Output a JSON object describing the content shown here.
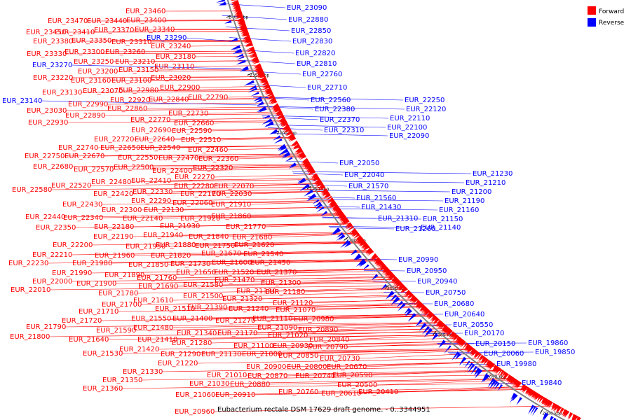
{
  "caption": "Eubacterium rectale DSM 17629 draft genome. - 0..3344951",
  "legend": {
    "forward_label": "Forward",
    "reverse_label": "Reverse",
    "forward_color": "#ff0000",
    "reverse_color": "#0000ff"
  },
  "chart_data": {
    "type": "circular-genome-map",
    "ticks": [
      "2400 kbp",
      "2350 kbp",
      "2300 kbp",
      "2250 kbp",
      "2200 kbp",
      "2150 kbp",
      "2100 kbp",
      "2050 kbp",
      "2000 kbp"
    ],
    "forward_labels": [
      [
        "EUR_23460",
        179,
        19
      ],
      [
        "EUR_23470",
        68,
        33
      ],
      [
        "EUR_23440",
        124,
        33
      ],
      [
        "EUR_23400",
        180,
        32
      ],
      [
        "EUR_23450",
        37,
        49
      ],
      [
        "EUR_23410",
        78,
        49
      ],
      [
        "EUR_23370",
        134,
        46
      ],
      [
        "EUR_23340",
        192,
        45
      ],
      [
        "EUR_23380",
        47,
        62
      ],
      [
        "EUR_23350",
        102,
        61
      ],
      [
        "EUR_23310",
        159,
        63
      ],
      [
        "EUR_23240",
        215,
        69
      ],
      [
        "EUR_23330",
        38,
        80
      ],
      [
        "EUR_23300",
        92,
        77
      ],
      [
        "EUR_23260",
        150,
        77
      ],
      [
        "EUR_23180",
        222,
        84
      ],
      [
        "EUR_23250",
        105,
        91
      ],
      [
        "EUR_23210",
        164,
        91
      ],
      [
        "EUR_23110",
        220,
        98
      ],
      [
        "EUR_23200",
        111,
        105
      ],
      [
        "EUR_23150",
        169,
        103
      ],
      [
        "EUR_23220",
        47,
        114
      ],
      [
        "EUR_23160",
        101,
        118
      ],
      [
        "EUR_23100",
        159,
        118
      ],
      [
        "EUR_23020",
        215,
        114
      ],
      [
        "EUR_22980",
        169,
        132
      ],
      [
        "EUR_22900",
        228,
        128
      ],
      [
        "EUR_23130",
        60,
        135
      ],
      [
        "EUR_23070",
        118,
        133
      ],
      [
        "EUR_22920",
        157,
        146
      ],
      [
        "EUR_22840",
        212,
        145
      ],
      [
        "EUR_22790",
        268,
        142
      ],
      [
        "EUR_22990",
        97,
        152
      ],
      [
        "EUR_22860",
        153,
        158
      ],
      [
        "EUR_23030",
        38,
        161
      ],
      [
        "EUR_22890",
        93,
        168
      ],
      [
        "EUR_22730",
        240,
        165
      ],
      [
        "EUR_22930",
        40,
        178
      ],
      [
        "EUR_22770",
        186,
        174
      ],
      [
        "EUR_22660",
        248,
        179
      ],
      [
        "EUR_22690",
        187,
        189
      ],
      [
        "EUR_22590",
        245,
        190
      ],
      [
        "EUR_22720",
        134,
        202
      ],
      [
        "EUR_22640",
        192,
        202
      ],
      [
        "EUR_22510",
        258,
        203
      ],
      [
        "EUR_22740",
        83,
        214
      ],
      [
        "EUR_22650",
        143,
        214
      ],
      [
        "EUR_22540",
        200,
        214
      ],
      [
        "EUR_22460",
        268,
        217
      ],
      [
        "EUR_22750",
        35,
        226
      ],
      [
        "EUR_22670",
        92,
        226
      ],
      [
        "EUR_22550",
        168,
        228
      ],
      [
        "EUR_22470",
        226,
        229
      ],
      [
        "EUR_22360",
        283,
        230
      ],
      [
        "EUR_22680",
        47,
        241
      ],
      [
        "EUR_22570",
        105,
        245
      ],
      [
        "EUR_22500",
        162,
        242
      ],
      [
        "EUR_22400",
        217,
        247
      ],
      [
        "EUR_22320",
        275,
        243
      ],
      [
        "EUR_22270",
        249,
        256
      ],
      [
        "EUR_22480",
        130,
        263
      ],
      [
        "EUR_22410",
        187,
        261
      ],
      [
        "EUR_22520",
        73,
        268
      ],
      [
        "EUR_22280",
        248,
        269
      ],
      [
        "EUR_22070",
        305,
        269
      ],
      [
        "EUR_22580",
        17,
        274
      ],
      [
        "EUR_22420",
        133,
        280
      ],
      [
        "EUR_22330",
        189,
        277
      ],
      [
        "EUR_22170",
        257,
        280
      ],
      [
        "EUR_22030",
        302,
        280
      ],
      [
        "EUR_22290",
        187,
        290
      ],
      [
        "EUR_22060",
        246,
        293
      ],
      [
        "EUR_21910",
        301,
        295
      ],
      [
        "EUR_22430",
        89,
        295
      ],
      [
        "EUR_22300",
        145,
        303
      ],
      [
        "EUR_22130",
        205,
        303
      ],
      [
        "EUR_21860",
        301,
        312
      ],
      [
        "EUR_22440",
        36,
        313
      ],
      [
        "EUR_22340",
        90,
        314
      ],
      [
        "EUR_22140",
        175,
        315
      ],
      [
        "EUR_21920",
        257,
        315
      ],
      [
        "EUR_22350",
        51,
        328
      ],
      [
        "EUR_22180",
        134,
        327
      ],
      [
        "EUR_21930",
        228,
        326
      ],
      [
        "EUR_21770",
        322,
        327
      ],
      [
        "EUR_22190",
        133,
        341
      ],
      [
        "EUR_21940",
        204,
        339
      ],
      [
        "EUR_21840",
        269,
        341
      ],
      [
        "EUR_21680",
        331,
        342
      ],
      [
        "EUR_22200",
        75,
        353
      ],
      [
        "EUR_21950",
        179,
        355
      ],
      [
        "EUR_21880",
        222,
        353
      ],
      [
        "EUR_21750",
        278,
        354
      ],
      [
        "EUR_21620",
        334,
        353
      ],
      [
        "EUR_22210",
        46,
        367
      ],
      [
        "EUR_21960",
        135,
        368
      ],
      [
        "EUR_21820",
        215,
        368
      ],
      [
        "EUR_21670",
        287,
        365
      ],
      [
        "EUR_21540",
        347,
        366
      ],
      [
        "EUR_22230",
        12,
        379
      ],
      [
        "EUR_21980",
        103,
        379
      ],
      [
        "EUR_21850",
        183,
        381
      ],
      [
        "EUR_21730",
        243,
        380
      ],
      [
        "EUR_21600",
        302,
        378
      ],
      [
        "EUR_21450",
        357,
        378
      ],
      [
        "EUR_21990",
        74,
        393
      ],
      [
        "EUR_21890",
        149,
        396
      ],
      [
        "EUR_21650",
        251,
        392
      ],
      [
        "EUR_21520",
        305,
        392
      ],
      [
        "EUR_21370",
        366,
        392
      ],
      [
        "EUR_22000",
        46,
        405
      ],
      [
        "EUR_21900",
        109,
        408
      ],
      [
        "EUR_21760",
        195,
        400
      ],
      [
        "EUR_21470",
        306,
        403
      ],
      [
        "EUR_21300",
        372,
        407
      ],
      [
        "EUR_22010",
        15,
        417
      ],
      [
        "EUR_21690",
        197,
        412
      ],
      [
        "EUR_21580",
        261,
        410
      ],
      [
        "EUR_21380",
        337,
        419
      ],
      [
        "EUR_21180",
        378,
        420
      ],
      [
        "EUR_21780",
        140,
        422
      ],
      [
        "EUR_21610",
        190,
        432
      ],
      [
        "EUR_21500",
        261,
        426
      ],
      [
        "EUR_21320",
        317,
        430
      ],
      [
        "EUR_21120",
        389,
        436
      ],
      [
        "EUR_21700",
        145,
        438
      ],
      [
        "EUR_21510",
        221,
        444
      ],
      [
        "EUR_21390",
        267,
        442
      ],
      [
        "EUR_21240",
        326,
        444
      ],
      [
        "EUR_21070",
        393,
        446
      ],
      [
        "EUR_21710",
        112,
        448
      ],
      [
        "EUR_21550",
        187,
        458
      ],
      [
        "EUR_21400",
        246,
        458
      ],
      [
        "EUR_21270",
        307,
        461
      ],
      [
        "EUR_21110",
        360,
        458
      ],
      [
        "EUR_20980",
        419,
        459
      ],
      [
        "EUR_21720",
        88,
        461
      ],
      [
        "EUR_21090",
        367,
        471
      ],
      [
        "EUR_20890",
        425,
        474
      ],
      [
        "EUR_21790",
        37,
        470
      ],
      [
        "EUR_21590",
        137,
        475
      ],
      [
        "EUR_21480",
        190,
        471
      ],
      [
        "EUR_21340",
        252,
        479
      ],
      [
        "EUR_21170",
        310,
        479
      ],
      [
        "EUR_21020",
        382,
        482
      ],
      [
        "EUR_21800",
        14,
        484
      ],
      [
        "EUR_21640",
        98,
        488
      ],
      [
        "EUR_21410",
        196,
        488
      ],
      [
        "EUR_21280",
        245,
        493
      ],
      [
        "EUR_21100",
        333,
        497
      ],
      [
        "EUR_20930",
        389,
        497
      ],
      [
        "EUR_20840",
        441,
        488
      ],
      [
        "EUR_20790",
        439,
        499
      ],
      [
        "EUR_21420",
        170,
        502
      ],
      [
        "EUR_21530",
        118,
        508
      ],
      [
        "EUR_21290",
        229,
        509
      ],
      [
        "EUR_21130",
        287,
        509
      ],
      [
        "EUR_21000",
        345,
        509
      ],
      [
        "EUR_20850",
        397,
        511
      ],
      [
        "EUR_20730",
        456,
        515
      ],
      [
        "EUR_21220",
        225,
        522
      ],
      [
        "EUR_20900",
        351,
        527
      ],
      [
        "EUR_20800",
        409,
        527
      ],
      [
        "EUR_20670",
        466,
        527
      ],
      [
        "EUR_21330",
        175,
        534
      ],
      [
        "EUR_21010",
        295,
        539
      ],
      [
        "EUR_20870",
        353,
        540
      ],
      [
        "EUR_20740",
        421,
        540
      ],
      [
        "EUR_20590",
        474,
        539
      ],
      [
        "EUR_21350",
        146,
        546
      ],
      [
        "EUR_21030",
        270,
        551
      ],
      [
        "EUR_20880",
        328,
        552
      ],
      [
        "EUR_20500",
        481,
        553
      ],
      [
        "EUR_21360",
        118,
        558
      ],
      [
        "EUR_20760",
        397,
        563
      ],
      [
        "EUR_20410",
        511,
        563
      ],
      [
        "EUR_21060",
        250,
        567
      ],
      [
        "EUR_20910",
        307,
        567
      ],
      [
        "EUR_20610",
        458,
        565
      ],
      [
        "EUR_20960",
        249,
        591
      ]
    ],
    "reverse_labels": [
      [
        "EUR_23090",
        409,
        14
      ],
      [
        "EUR_22880",
        411,
        31
      ],
      [
        "EUR_22850",
        415,
        47
      ],
      [
        "EUR_22830",
        417,
        62
      ],
      [
        "EUR_22820",
        421,
        79
      ],
      [
        "EUR_22810",
        423,
        94
      ],
      [
        "EUR_22760",
        431,
        109
      ],
      [
        "EUR_23290",
        209,
        57
      ],
      [
        "EUR_23270",
        46,
        96
      ],
      [
        "EUR_23140",
        3,
        147
      ],
      [
        "EUR_22710",
        438,
        128
      ],
      [
        "EUR_22560",
        443,
        146
      ],
      [
        "EUR_22380",
        449,
        159
      ],
      [
        "EUR_22370",
        456,
        174
      ],
      [
        "EUR_22310",
        462,
        189
      ],
      [
        "EUR_22250",
        577,
        146
      ],
      [
        "EUR_22120",
        579,
        159
      ],
      [
        "EUR_22110",
        556,
        172
      ],
      [
        "EUR_22100",
        552,
        185
      ],
      [
        "EUR_22090",
        555,
        197
      ],
      [
        "EUR_22050",
        484,
        236
      ],
      [
        "EUR_22040",
        491,
        253
      ],
      [
        "EUR_21570",
        497,
        269
      ],
      [
        "EUR_21560",
        508,
        286
      ],
      [
        "EUR_21430",
        515,
        299
      ],
      [
        "EUR_21310",
        539,
        315
      ],
      [
        "EUR_21260",
        564,
        330
      ],
      [
        "EUR_21230",
        674,
        251
      ],
      [
        "EUR_21210",
        664,
        264
      ],
      [
        "EUR_21200",
        644,
        277
      ],
      [
        "EUR_21190",
        634,
        290
      ],
      [
        "EUR_21160",
        626,
        303
      ],
      [
        "EUR_21150",
        603,
        316
      ],
      [
        "EUR_21140",
        600,
        328
      ],
      [
        "EUR_20990",
        568,
        374
      ],
      [
        "EUR_20950",
        580,
        390
      ],
      [
        "EUR_20940",
        595,
        405
      ],
      [
        "EUR_20750",
        607,
        421
      ],
      [
        "EUR_20680",
        619,
        437
      ],
      [
        "EUR_20640",
        634,
        452
      ],
      [
        "EUR_20550",
        646,
        467
      ],
      [
        "EUR_20170",
        662,
        479
      ],
      [
        "EUR_20150",
        678,
        494
      ],
      [
        "EUR_20060",
        690,
        508
      ],
      [
        "EUR_19980",
        708,
        523
      ],
      [
        "EUR_19860",
        753,
        493
      ],
      [
        "EUR_19850",
        763,
        506
      ],
      [
        "EUR_19840",
        744,
        550
      ]
    ]
  }
}
